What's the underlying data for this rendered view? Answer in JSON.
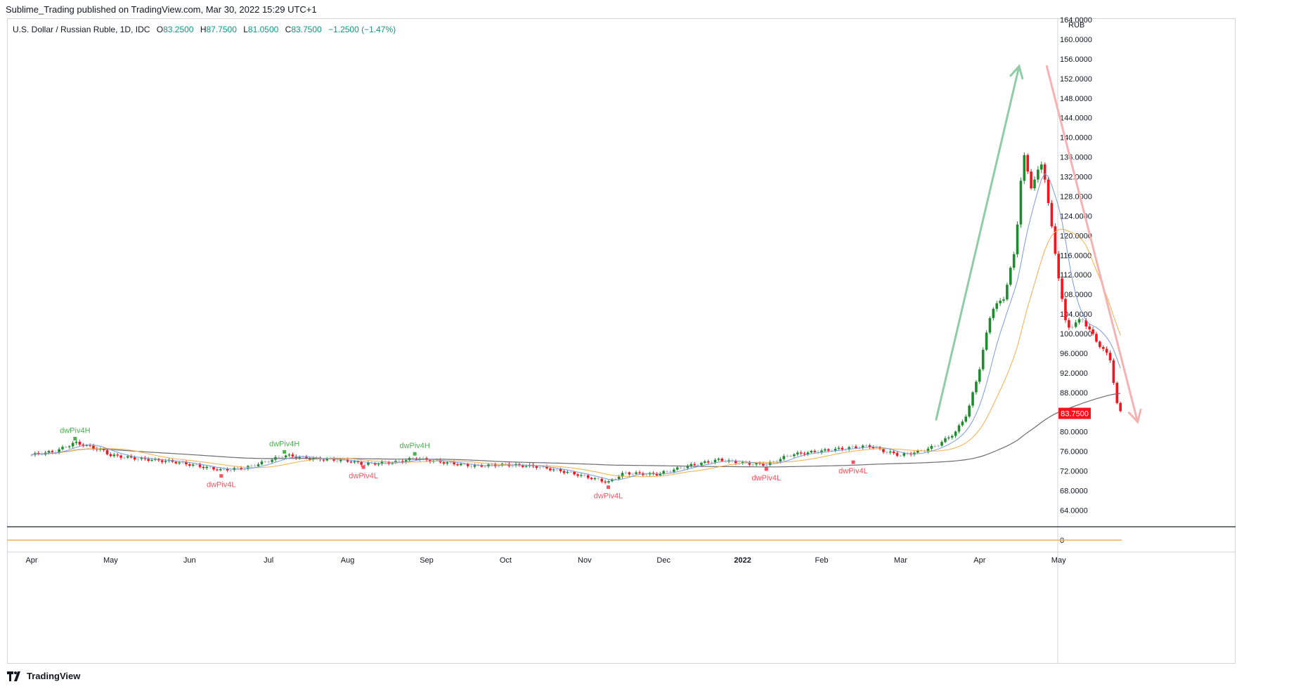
{
  "header": {
    "text": "Sublime_Trading published on TradingView.com, Mar 30, 2022 15:29 UTC+1"
  },
  "legend": {
    "symbol": "U.S. Dollar / Russian Ruble, 1D, IDC",
    "open_label": "O",
    "open": "83.2500",
    "high_label": "H",
    "high": "87.7500",
    "low_label": "L",
    "low": "81.0500",
    "close_label": "C",
    "close": "83.7500",
    "change": "−1.2500 (−1.47%)"
  },
  "footer": {
    "brand": "TradingView",
    "logo_icon": "tradingview-logo-icon"
  },
  "colors": {
    "up": "#1e8c2e",
    "down": "#f7121c",
    "neutral": "#b4b6bd",
    "ma_fast": "#7a9bdc",
    "ma_mid": "#f5ad4b",
    "ma_slow": "#6b6d73",
    "arrow_up": "#8fcda6",
    "arrow_down": "#f6b2b2",
    "pivot_high": "#4caf50",
    "pivot_low": "#f7525f",
    "price_badge": "#f7121c"
  },
  "chart_data": {
    "type": "candlestick",
    "symbol": "USDRUB",
    "currency": "RUB",
    "current_price": "83.7500",
    "ylim": [
      60,
      164
    ],
    "y_ticks": [
      "164.0000",
      "160.0000",
      "156.0000",
      "152.0000",
      "148.0000",
      "144.0000",
      "140.0000",
      "136.0000",
      "132.0000",
      "128.0000",
      "124.0000",
      "120.0000",
      "116.0000",
      "112.0000",
      "108.0000",
      "104.0000",
      "100.0000",
      "96.0000",
      "92.0000",
      "88.0000",
      "84.0000",
      "80.0000",
      "76.0000",
      "72.0000",
      "68.0000",
      "64.0000"
    ],
    "x_ticks": [
      "Apr",
      "May",
      "Jun",
      "Jul",
      "Aug",
      "Sep",
      "Oct",
      "Nov",
      "Dec",
      "2022",
      "Feb",
      "Mar",
      "Apr",
      "May"
    ],
    "indicator_pane": {
      "value_label": "0"
    },
    "pivots": [
      {
        "label": "dwPiv4H",
        "type": "high",
        "month_index": 0.55,
        "price": 78.6
      },
      {
        "label": "dwPiv4L",
        "type": "low",
        "month_index": 2.4,
        "price": 71.0
      },
      {
        "label": "dwPiv4H",
        "type": "high",
        "month_index": 3.2,
        "price": 75.9
      },
      {
        "label": "dwPiv4L",
        "type": "low",
        "month_index": 4.2,
        "price": 72.8
      },
      {
        "label": "dwPiv4H",
        "type": "high",
        "month_index": 4.85,
        "price": 75.5
      },
      {
        "label": "dwPiv4L",
        "type": "low",
        "month_index": 7.3,
        "price": 68.7
      },
      {
        "label": "dwPiv4L",
        "type": "low",
        "month_index": 9.3,
        "price": 72.4
      },
      {
        "label": "dwPiv4L",
        "type": "low",
        "month_index": 10.4,
        "price": 73.8
      }
    ],
    "price_anchors": [
      [
        0.0,
        75.3
      ],
      [
        0.3,
        76.0
      ],
      [
        0.55,
        77.8
      ],
      [
        0.9,
        76.2
      ],
      [
        1.0,
        75.2
      ],
      [
        1.3,
        74.6
      ],
      [
        1.8,
        73.9
      ],
      [
        2.4,
        72.2
      ],
      [
        2.7,
        72.6
      ],
      [
        3.0,
        74.1
      ],
      [
        3.2,
        75.2
      ],
      [
        3.5,
        74.6
      ],
      [
        4.0,
        74.1
      ],
      [
        4.2,
        73.4
      ],
      [
        4.6,
        73.8
      ],
      [
        4.85,
        74.6
      ],
      [
        5.2,
        73.8
      ],
      [
        5.6,
        73.0
      ],
      [
        6.0,
        73.3
      ],
      [
        6.4,
        72.9
      ],
      [
        6.8,
        71.7
      ],
      [
        7.3,
        69.7
      ],
      [
        7.5,
        71.6
      ],
      [
        7.9,
        71.3
      ],
      [
        8.3,
        73.0
      ],
      [
        8.7,
        74.3
      ],
      [
        9.0,
        73.6
      ],
      [
        9.3,
        73.3
      ],
      [
        9.6,
        75.3
      ],
      [
        10.0,
        76.1
      ],
      [
        10.4,
        76.8
      ],
      [
        10.6,
        77.1
      ],
      [
        10.8,
        76.0
      ],
      [
        11.0,
        75.2
      ],
      [
        11.3,
        76.2
      ],
      [
        11.5,
        77.6
      ],
      [
        11.7,
        80.0
      ],
      [
        11.85,
        84.0
      ],
      [
        12.0,
        93.0
      ],
      [
        12.15,
        105.0
      ],
      [
        12.3,
        107.0
      ],
      [
        12.45,
        117.0
      ],
      [
        12.55,
        137.0
      ],
      [
        12.65,
        130.0
      ],
      [
        12.8,
        135.0
      ],
      [
        12.95,
        117.0
      ],
      [
        13.1,
        101.0
      ],
      [
        13.3,
        103.0
      ],
      [
        13.5,
        98.0
      ],
      [
        13.65,
        95.0
      ],
      [
        13.75,
        84.5
      ],
      [
        13.8,
        83.75
      ]
    ],
    "arrows": [
      {
        "direction": "up",
        "from": [
          11.45,
          82.5
        ],
        "to": [
          12.5,
          154.5
        ]
      },
      {
        "direction": "down",
        "from": [
          12.85,
          154.5
        ],
        "to": [
          14.0,
          82.0
        ]
      }
    ]
  }
}
